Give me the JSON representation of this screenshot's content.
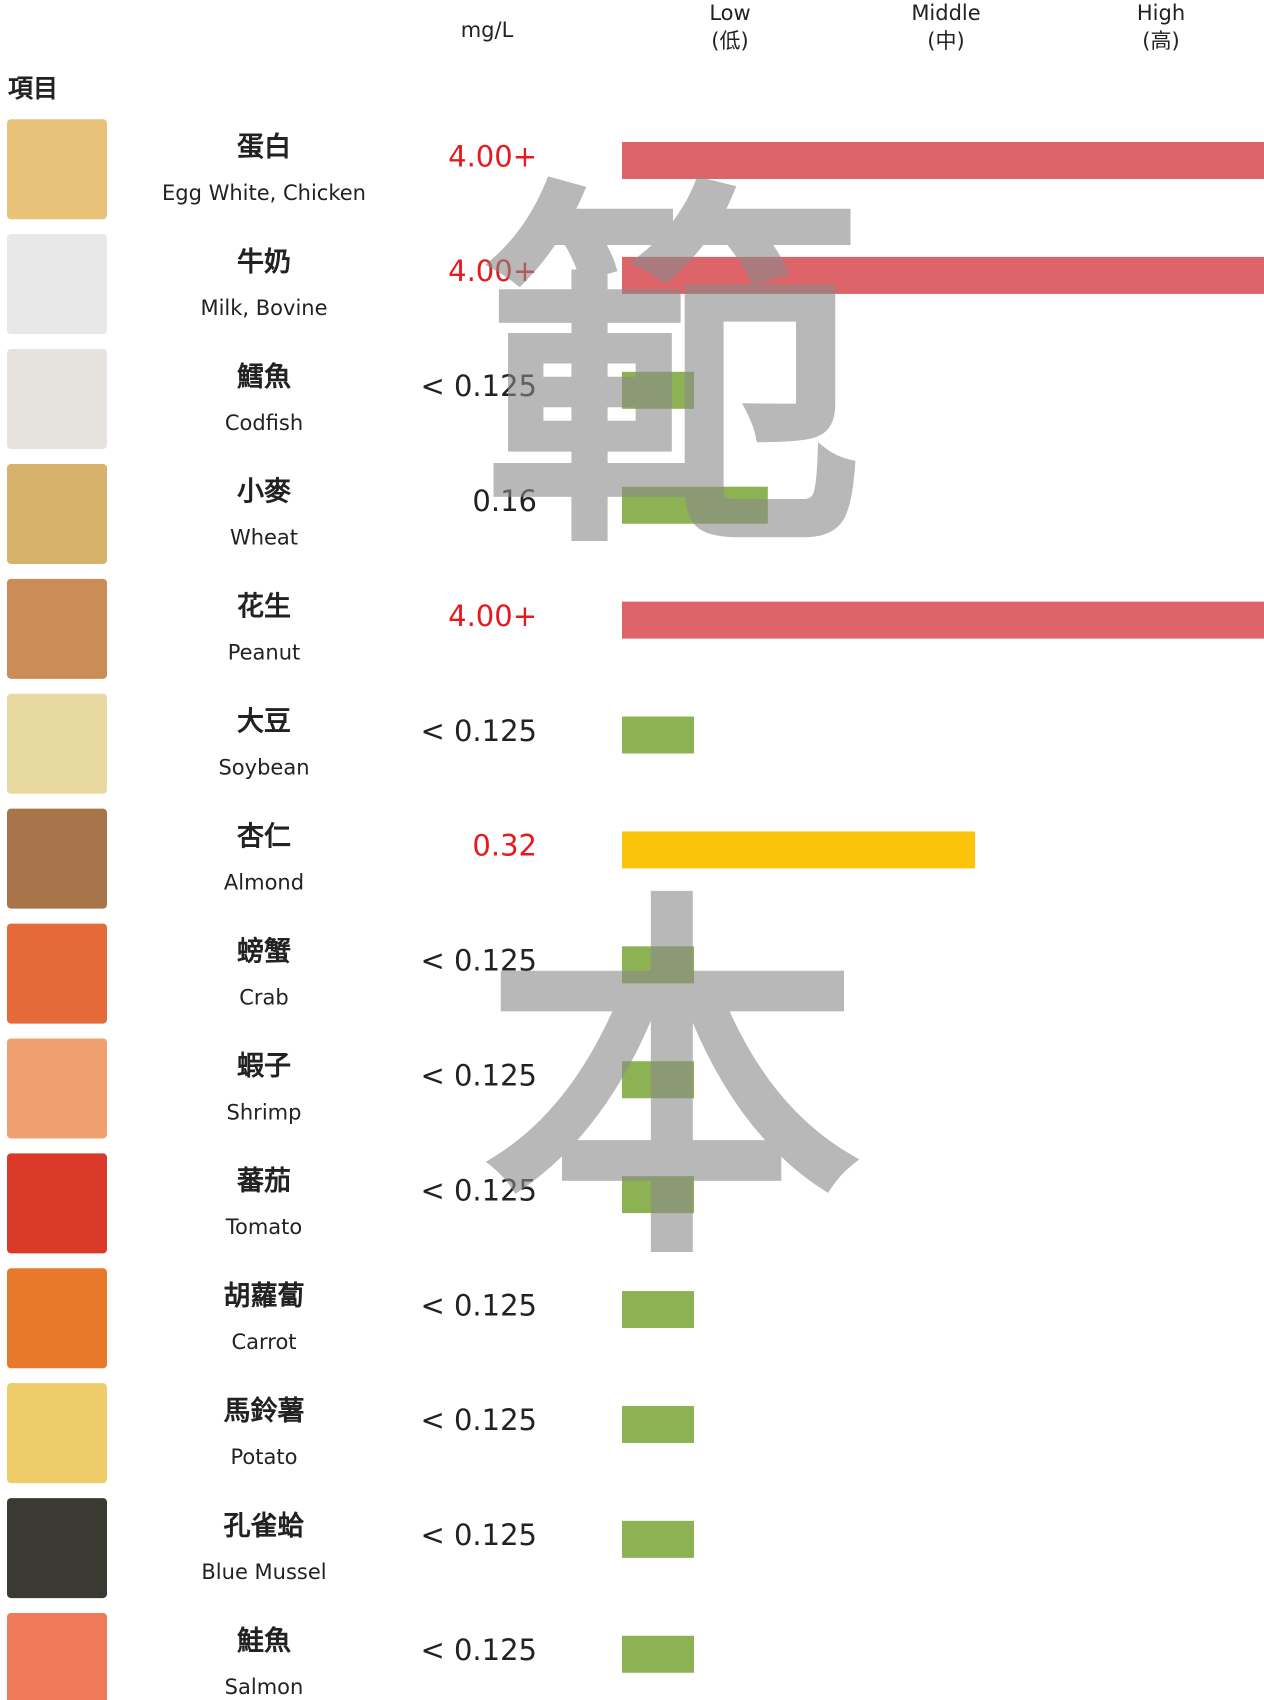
{
  "header": {
    "unit": "mg/L",
    "levels": [
      [
        "Low",
        "(低)"
      ],
      [
        "Middle",
        "(中)"
      ],
      [
        "High",
        "(高)"
      ]
    ],
    "item": "項目"
  },
  "watermark": [
    "範",
    "本"
  ],
  "rows": [
    {
      "zh": "蛋白",
      "en": "Egg White, Chicken",
      "value": "4.00+",
      "value_color": "#e8191c",
      "color": "#dd6468"
    },
    {
      "zh": "牛奶",
      "en": "Milk, Bovine",
      "value": "4.00+",
      "value_color": "#e8191c",
      "color": "#dd6468"
    },
    {
      "zh": "鱈魚",
      "en": "Codfish",
      "value": "< 0.125",
      "value_color": "#222222",
      "color": "#8db253"
    },
    {
      "zh": "小麥",
      "en": "Wheat",
      "value": "0.16",
      "value_color": "#222222",
      "color": "#8db253"
    },
    {
      "zh": "花生",
      "en": "Peanut",
      "value": "4.00+",
      "value_color": "#e8191c",
      "color": "#dd6468"
    },
    {
      "zh": "大豆",
      "en": "Soybean",
      "value": "< 0.125",
      "value_color": "#222222",
      "color": "#8db253"
    },
    {
      "zh": "杏仁",
      "en": "Almond",
      "value": "0.32",
      "value_color": "#e8191c",
      "color": "#fbc40a"
    },
    {
      "zh": "螃蟹",
      "en": "Crab",
      "value": "< 0.125",
      "value_color": "#222222",
      "color": "#8db253"
    },
    {
      "zh": "蝦子",
      "en": "Shrimp",
      "value": "< 0.125",
      "value_color": "#222222",
      "color": "#8db253"
    },
    {
      "zh": "蕃茄",
      "en": "Tomato",
      "value": "< 0.125",
      "value_color": "#222222",
      "color": "#8db253"
    },
    {
      "zh": "胡蘿蔔",
      "en": "Carrot",
      "value": "< 0.125",
      "value_color": "#222222",
      "color": "#8db253"
    },
    {
      "zh": "馬鈴薯",
      "en": "Potato",
      "value": "< 0.125",
      "value_color": "#222222",
      "color": "#8db253"
    },
    {
      "zh": "孔雀蛤",
      "en": "Blue Mussel",
      "value": "< 0.125",
      "value_color": "#222222",
      "color": "#8db253"
    },
    {
      "zh": "鮭魚",
      "en": "Salmon",
      "value": "< 0.125",
      "value_color": "#222222",
      "color": "#8db253"
    }
  ]
}
